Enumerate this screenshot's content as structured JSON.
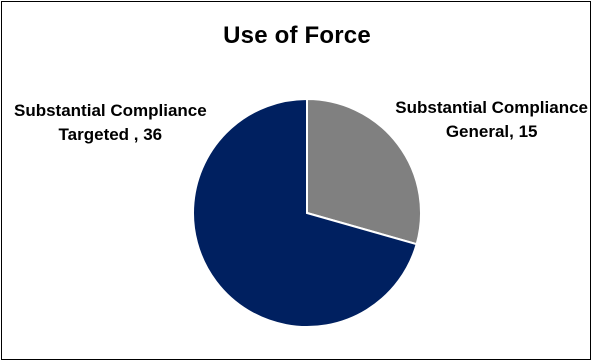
{
  "chart_data": {
    "type": "pie",
    "title": "Use of Force",
    "slices": [
      {
        "category": "Substantial Compliance General",
        "label_line1": "Substantial Compliance",
        "label_line2": "General, 15",
        "value": 15,
        "color": "#808080"
      },
      {
        "category": "Substantial Compliance Targeted",
        "label_line1": "Substantial Compliance",
        "label_line2": "Targeted , 36",
        "value": 36,
        "color": "#002060"
      }
    ],
    "start_angle_deg": 0,
    "direction": "clockwise",
    "slice_border_color": "#ffffff",
    "legend": "none"
  }
}
